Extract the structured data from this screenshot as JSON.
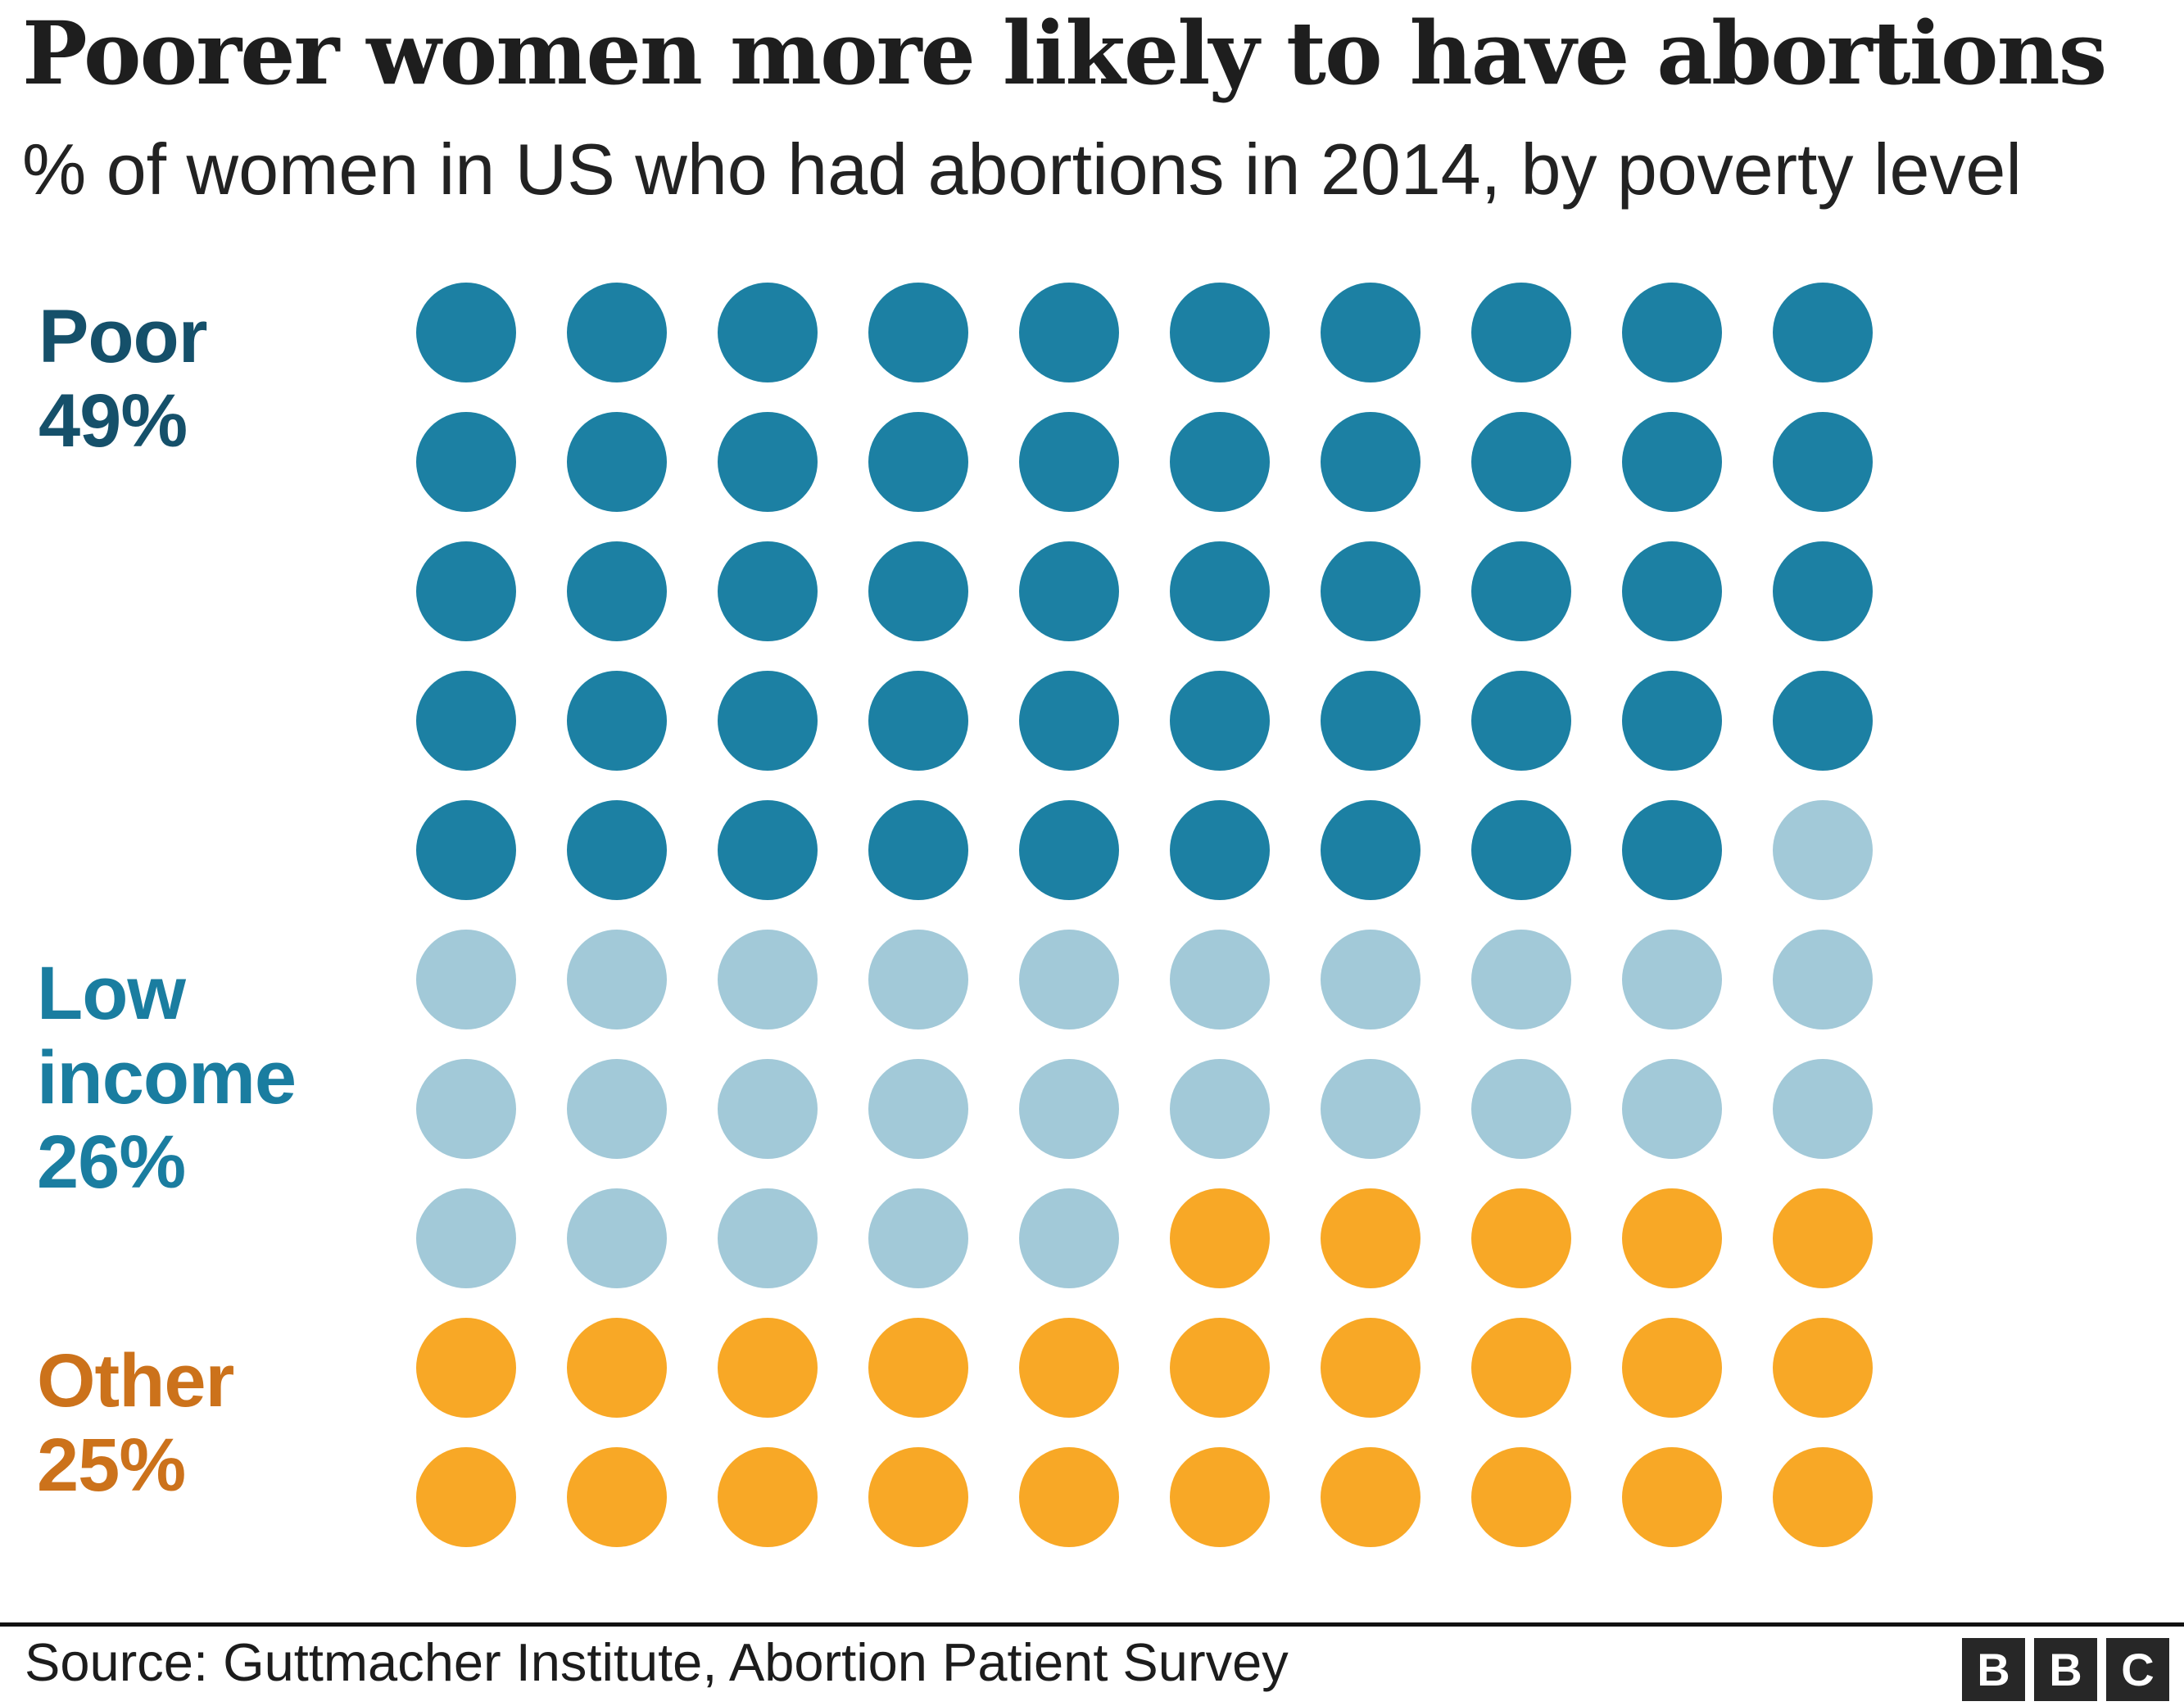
{
  "page": {
    "title": "Poorer women more likely to have abortions",
    "subtitle": "% of women in US who had abortions in 2014, by poverty level"
  },
  "chart_data": {
    "type": "waffle",
    "title": "Poorer women more likely to have abortions",
    "subtitle": "% of women in US who had abortions in 2014, by poverty level",
    "total_units": 100,
    "unit": "1 dot = 1% of women in US who had abortions in 2014",
    "grid": {
      "rows": 10,
      "cols": 10,
      "fill_order": "row-major, left-to-right, top-to-bottom"
    },
    "series": [
      {
        "name": "Poor",
        "value": 49,
        "value_label": "49%",
        "dot_color": "#1C80A3",
        "label_color": "#15506A"
      },
      {
        "name": "Low income",
        "value": 26,
        "value_label": "26%",
        "dot_color": "#A2C9D8",
        "label_color": "#1A7DA0"
      },
      {
        "name": "Other",
        "value": 25,
        "value_label": "25%",
        "dot_color": "#F8A826",
        "label_color": "#CC721B"
      }
    ],
    "legend_position": "left",
    "grid_lines": "off"
  },
  "footer": {
    "source": "Source: Guttmacher Institute, Abortion Patient Survey",
    "logo_letters": [
      "B",
      "B",
      "C"
    ],
    "logo_color": "#272727"
  }
}
